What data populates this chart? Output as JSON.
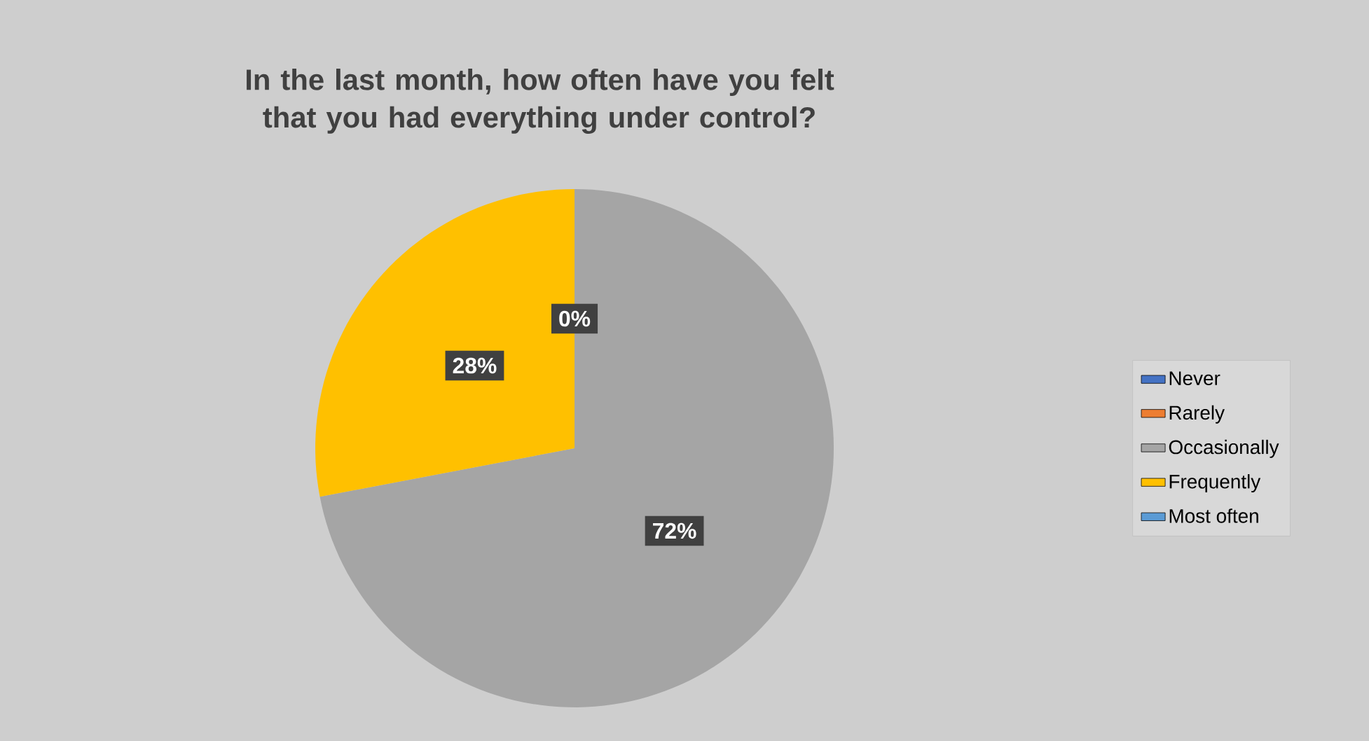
{
  "chart_data": {
    "type": "pie",
    "title": "In the last month, how often have you felt that you had everything under control?",
    "categories": [
      "Never",
      "Rarely",
      "Occasionally",
      "Frequently",
      "Most often"
    ],
    "values": [
      0,
      0,
      72,
      28,
      0
    ],
    "colors": [
      "#4472c4",
      "#ed7d31",
      "#a5a5a5",
      "#ffc000",
      "#5b9bd5"
    ],
    "value_labels": [
      "0%",
      null,
      "72%",
      "28%",
      null
    ],
    "legend": "right"
  }
}
